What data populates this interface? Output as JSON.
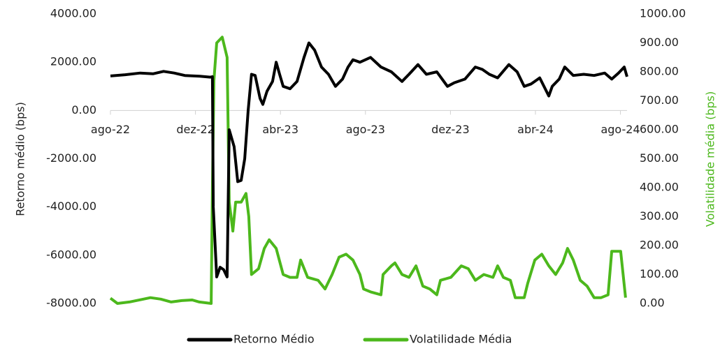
{
  "chart_data": {
    "type": "line",
    "ylabel": "Retorno médio (bps)",
    "y2label": "Volatilidade média (bps)",
    "xlim": [
      0,
      24.31
    ],
    "xticks": [
      {
        "value": 0,
        "label": "ago-22"
      },
      {
        "value": 4,
        "label": "dez-22"
      },
      {
        "value": 8,
        "label": "abr-23"
      },
      {
        "value": 12,
        "label": "ago-23"
      },
      {
        "value": 16,
        "label": "dez-23"
      },
      {
        "value": 20,
        "label": "abr-24"
      },
      {
        "value": 24,
        "label": "ago-24"
      }
    ],
    "ylim": [
      -8000,
      4000
    ],
    "yticks": [
      {
        "value": 4000,
        "label": "4000.00"
      },
      {
        "value": 2000,
        "label": "2000.00"
      },
      {
        "value": 0,
        "label": "0.00"
      },
      {
        "value": -2000,
        "label": "-2000.00"
      },
      {
        "value": -4000,
        "label": "-4000.00"
      },
      {
        "value": -6000,
        "label": "-6000.00"
      },
      {
        "value": -8000,
        "label": "-8000.00"
      }
    ],
    "y2lim": [
      0,
      1000
    ],
    "y2ticks": [
      {
        "value": 1000,
        "label": "1000.00"
      },
      {
        "value": 900,
        "label": "900.00"
      },
      {
        "value": 800,
        "label": "800.00"
      },
      {
        "value": 700,
        "label": "700.00"
      },
      {
        "value": 600,
        "label": "600.00"
      },
      {
        "value": 500,
        "label": "500.00"
      },
      {
        "value": 400,
        "label": "400.00"
      },
      {
        "value": 300,
        "label": "300.00"
      },
      {
        "value": 200,
        "label": "200.00"
      },
      {
        "value": 100,
        "label": "100.00"
      },
      {
        "value": 0,
        "label": "0.00"
      }
    ],
    "series": [
      {
        "name": "Retorno Médio",
        "color": "#000000",
        "x": [
          0,
          0.7,
          1.4,
          2.0,
          2.5,
          3.0,
          3.5,
          4.2,
          4.7,
          4.8,
          4.84,
          5.0,
          5.16,
          5.33,
          5.49,
          5.59,
          5.82,
          5.99,
          6.15,
          6.32,
          6.48,
          6.64,
          6.81,
          7.04,
          7.17,
          7.37,
          7.63,
          7.8,
          7.96,
          8.13,
          8.45,
          8.78,
          9.11,
          9.34,
          9.61,
          9.93,
          10.26,
          10.59,
          10.92,
          11.18,
          11.41,
          11.74,
          12.24,
          12.73,
          13.22,
          13.72,
          14.05,
          14.47,
          14.87,
          15.36,
          15.86,
          16.18,
          16.68,
          17.17,
          17.5,
          17.83,
          18.22,
          18.75,
          19.14,
          19.47,
          19.8,
          20.2,
          20.63,
          20.79,
          21.12,
          21.38,
          21.78,
          22.27,
          22.76,
          23.26,
          23.59,
          23.91,
          24.18,
          24.31
        ],
        "values": [
          1430,
          1480,
          1550,
          1520,
          1620,
          1550,
          1450,
          1420,
          1380,
          1400,
          -4000,
          -6900,
          -6500,
          -6600,
          -6900,
          -800,
          -1500,
          -2950,
          -2900,
          -2000,
          0,
          1500,
          1450,
          500,
          250,
          800,
          1200,
          2000,
          1500,
          1000,
          900,
          1200,
          2200,
          2800,
          2500,
          1800,
          1500,
          1000,
          1300,
          1800,
          2100,
          2000,
          2200,
          1800,
          1600,
          1200,
          1500,
          1900,
          1500,
          1600,
          1000,
          1150,
          1300,
          1800,
          1700,
          1500,
          1350,
          1900,
          1600,
          1000,
          1100,
          1350,
          600,
          1000,
          1300,
          1800,
          1450,
          1500,
          1450,
          1550,
          1300,
          1550,
          1800,
          1400
        ]
      },
      {
        "name": "Volatilidade Média",
        "color": "#4cb81c",
        "axis": "y2",
        "x": [
          0,
          0.33,
          0.89,
          1.55,
          1.88,
          2.37,
          2.86,
          3.36,
          3.85,
          4.18,
          4.74,
          4.8,
          4.87,
          5.0,
          5.26,
          5.49,
          5.59,
          5.76,
          5.89,
          6.15,
          6.38,
          6.51,
          6.64,
          6.97,
          7.24,
          7.47,
          7.8,
          8.13,
          8.45,
          8.78,
          8.95,
          9.28,
          9.77,
          10.1,
          10.43,
          10.76,
          11.09,
          11.41,
          11.74,
          11.91,
          12.24,
          12.73,
          12.83,
          13.22,
          13.39,
          13.72,
          14.05,
          14.38,
          14.7,
          15.03,
          15.36,
          15.53,
          16.02,
          16.51,
          16.84,
          17.17,
          17.57,
          18.0,
          18.22,
          18.49,
          18.82,
          19.05,
          19.47,
          19.64,
          19.97,
          20.3,
          20.63,
          20.95,
          21.28,
          21.51,
          21.78,
          22.11,
          22.43,
          22.76,
          23.09,
          23.42,
          23.59,
          24.01,
          24.24
        ],
        "values": [
          18,
          0,
          5,
          15,
          20,
          15,
          5,
          10,
          12,
          5,
          0,
          400,
          770,
          900,
          920,
          850,
          350,
          250,
          350,
          350,
          380,
          300,
          100,
          120,
          190,
          220,
          190,
          100,
          90,
          90,
          150,
          90,
          80,
          50,
          100,
          160,
          170,
          150,
          100,
          50,
          40,
          30,
          100,
          130,
          140,
          100,
          90,
          130,
          60,
          50,
          30,
          80,
          90,
          130,
          120,
          80,
          100,
          90,
          130,
          90,
          80,
          20,
          20,
          70,
          150,
          170,
          130,
          100,
          140,
          190,
          150,
          80,
          60,
          20,
          20,
          30,
          180,
          180,
          20
        ]
      }
    ]
  }
}
